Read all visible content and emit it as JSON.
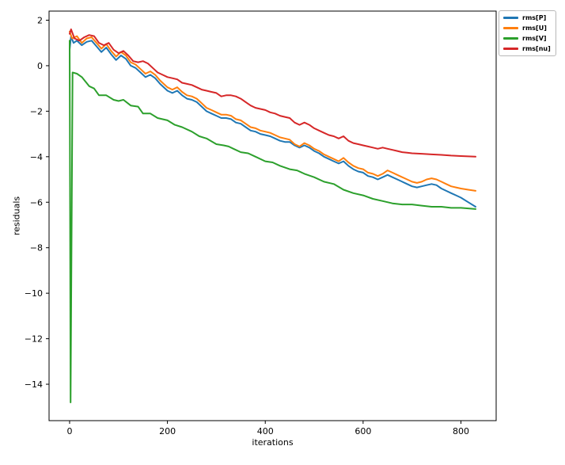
{
  "chart_data": {
    "type": "line",
    "title": "",
    "xlabel": "iterations",
    "ylabel": "residuals",
    "xlim": [
      -42,
      872
    ],
    "ylim": [
      -15.6,
      2.4
    ],
    "xticks": [
      0,
      200,
      400,
      600,
      800
    ],
    "xtick_labels": [
      "0",
      "200",
      "400",
      "600",
      "800"
    ],
    "yticks": [
      2,
      0,
      -2,
      -4,
      -6,
      -8,
      -10,
      -12,
      -14
    ],
    "ytick_labels": [
      "2",
      "0",
      "−2",
      "−4",
      "−6",
      "−8",
      "−10",
      "−12",
      "−14"
    ],
    "grid": false,
    "legend_position": "upper-right-outside",
    "line_width": 2,
    "axis_color": "#000000",
    "series": [
      {
        "name": "rms[P]",
        "color": "#1f77b4",
        "points": [
          [
            0,
            0.7
          ],
          [
            3,
            1.3
          ],
          [
            8,
            1.0
          ],
          [
            15,
            1.1
          ],
          [
            25,
            0.9
          ],
          [
            35,
            1.05
          ],
          [
            45,
            1.1
          ],
          [
            55,
            0.85
          ],
          [
            65,
            0.6
          ],
          [
            75,
            0.8
          ],
          [
            85,
            0.5
          ],
          [
            95,
            0.25
          ],
          [
            105,
            0.45
          ],
          [
            115,
            0.3
          ],
          [
            125,
            0.0
          ],
          [
            135,
            -0.1
          ],
          [
            145,
            -0.3
          ],
          [
            155,
            -0.5
          ],
          [
            165,
            -0.4
          ],
          [
            175,
            -0.55
          ],
          [
            185,
            -0.8
          ],
          [
            200,
            -1.1
          ],
          [
            210,
            -1.2
          ],
          [
            220,
            -1.1
          ],
          [
            230,
            -1.3
          ],
          [
            240,
            -1.45
          ],
          [
            250,
            -1.5
          ],
          [
            260,
            -1.6
          ],
          [
            270,
            -1.8
          ],
          [
            280,
            -2.0
          ],
          [
            290,
            -2.1
          ],
          [
            300,
            -2.2
          ],
          [
            310,
            -2.3
          ],
          [
            320,
            -2.3
          ],
          [
            330,
            -2.35
          ],
          [
            340,
            -2.5
          ],
          [
            350,
            -2.55
          ],
          [
            360,
            -2.7
          ],
          [
            370,
            -2.85
          ],
          [
            380,
            -2.9
          ],
          [
            390,
            -3.0
          ],
          [
            400,
            -3.05
          ],
          [
            410,
            -3.1
          ],
          [
            420,
            -3.2
          ],
          [
            430,
            -3.3
          ],
          [
            440,
            -3.35
          ],
          [
            450,
            -3.35
          ],
          [
            460,
            -3.5
          ],
          [
            470,
            -3.6
          ],
          [
            480,
            -3.5
          ],
          [
            490,
            -3.6
          ],
          [
            500,
            -3.75
          ],
          [
            510,
            -3.85
          ],
          [
            520,
            -4.0
          ],
          [
            530,
            -4.1
          ],
          [
            540,
            -4.2
          ],
          [
            550,
            -4.3
          ],
          [
            560,
            -4.2
          ],
          [
            570,
            -4.4
          ],
          [
            580,
            -4.55
          ],
          [
            590,
            -4.65
          ],
          [
            600,
            -4.7
          ],
          [
            610,
            -4.85
          ],
          [
            620,
            -4.9
          ],
          [
            630,
            -5.0
          ],
          [
            640,
            -4.9
          ],
          [
            650,
            -4.8
          ],
          [
            660,
            -4.9
          ],
          [
            670,
            -5.0
          ],
          [
            680,
            -5.1
          ],
          [
            690,
            -5.2
          ],
          [
            700,
            -5.3
          ],
          [
            710,
            -5.35
          ],
          [
            720,
            -5.3
          ],
          [
            730,
            -5.25
          ],
          [
            740,
            -5.2
          ],
          [
            750,
            -5.25
          ],
          [
            760,
            -5.4
          ],
          [
            770,
            -5.5
          ],
          [
            780,
            -5.6
          ],
          [
            790,
            -5.7
          ],
          [
            800,
            -5.8
          ],
          [
            815,
            -6.0
          ],
          [
            830,
            -6.2
          ]
        ]
      },
      {
        "name": "rms[U]",
        "color": "#ff7f0e",
        "points": [
          [
            0,
            1.5
          ],
          [
            5,
            1.2
          ],
          [
            15,
            1.3
          ],
          [
            25,
            1.0
          ],
          [
            35,
            1.2
          ],
          [
            45,
            1.25
          ],
          [
            55,
            1.0
          ],
          [
            65,
            0.75
          ],
          [
            75,
            0.95
          ],
          [
            85,
            0.65
          ],
          [
            95,
            0.4
          ],
          [
            105,
            0.6
          ],
          [
            115,
            0.45
          ],
          [
            125,
            0.15
          ],
          [
            135,
            0.05
          ],
          [
            145,
            -0.15
          ],
          [
            155,
            -0.35
          ],
          [
            165,
            -0.25
          ],
          [
            175,
            -0.4
          ],
          [
            185,
            -0.65
          ],
          [
            200,
            -0.95
          ],
          [
            210,
            -1.05
          ],
          [
            220,
            -0.95
          ],
          [
            230,
            -1.15
          ],
          [
            240,
            -1.3
          ],
          [
            250,
            -1.35
          ],
          [
            260,
            -1.45
          ],
          [
            270,
            -1.65
          ],
          [
            280,
            -1.85
          ],
          [
            290,
            -1.95
          ],
          [
            300,
            -2.05
          ],
          [
            310,
            -2.15
          ],
          [
            320,
            -2.15
          ],
          [
            330,
            -2.2
          ],
          [
            340,
            -2.35
          ],
          [
            350,
            -2.4
          ],
          [
            360,
            -2.55
          ],
          [
            370,
            -2.7
          ],
          [
            380,
            -2.75
          ],
          [
            390,
            -2.85
          ],
          [
            400,
            -2.9
          ],
          [
            410,
            -2.95
          ],
          [
            420,
            -3.05
          ],
          [
            430,
            -3.15
          ],
          [
            440,
            -3.2
          ],
          [
            450,
            -3.25
          ],
          [
            460,
            -3.45
          ],
          [
            470,
            -3.55
          ],
          [
            480,
            -3.4
          ],
          [
            490,
            -3.5
          ],
          [
            500,
            -3.65
          ],
          [
            510,
            -3.75
          ],
          [
            520,
            -3.9
          ],
          [
            530,
            -4.0
          ],
          [
            540,
            -4.1
          ],
          [
            550,
            -4.2
          ],
          [
            560,
            -4.05
          ],
          [
            570,
            -4.25
          ],
          [
            580,
            -4.4
          ],
          [
            590,
            -4.5
          ],
          [
            600,
            -4.55
          ],
          [
            610,
            -4.7
          ],
          [
            620,
            -4.75
          ],
          [
            630,
            -4.85
          ],
          [
            640,
            -4.75
          ],
          [
            650,
            -4.6
          ],
          [
            660,
            -4.7
          ],
          [
            670,
            -4.8
          ],
          [
            680,
            -4.9
          ],
          [
            690,
            -5.0
          ],
          [
            700,
            -5.1
          ],
          [
            710,
            -5.15
          ],
          [
            720,
            -5.1
          ],
          [
            730,
            -5.0
          ],
          [
            740,
            -4.95
          ],
          [
            750,
            -5.0
          ],
          [
            760,
            -5.1
          ],
          [
            770,
            -5.2
          ],
          [
            780,
            -5.3
          ],
          [
            790,
            -5.35
          ],
          [
            800,
            -5.4
          ],
          [
            815,
            -5.45
          ],
          [
            830,
            -5.5
          ]
        ]
      },
      {
        "name": "rms[V]",
        "color": "#2ca02c",
        "points": [
          [
            0,
            1.1
          ],
          [
            2,
            -14.8
          ],
          [
            6,
            -0.3
          ],
          [
            15,
            -0.35
          ],
          [
            25,
            -0.5
          ],
          [
            40,
            -0.9
          ],
          [
            50,
            -1.0
          ],
          [
            60,
            -1.3
          ],
          [
            75,
            -1.3
          ],
          [
            90,
            -1.5
          ],
          [
            100,
            -1.55
          ],
          [
            110,
            -1.5
          ],
          [
            125,
            -1.75
          ],
          [
            140,
            -1.8
          ],
          [
            150,
            -2.1
          ],
          [
            165,
            -2.1
          ],
          [
            180,
            -2.3
          ],
          [
            200,
            -2.4
          ],
          [
            215,
            -2.6
          ],
          [
            230,
            -2.7
          ],
          [
            250,
            -2.9
          ],
          [
            265,
            -3.1
          ],
          [
            280,
            -3.2
          ],
          [
            300,
            -3.45
          ],
          [
            315,
            -3.5
          ],
          [
            325,
            -3.55
          ],
          [
            335,
            -3.65
          ],
          [
            350,
            -3.8
          ],
          [
            365,
            -3.85
          ],
          [
            380,
            -4.0
          ],
          [
            400,
            -4.2
          ],
          [
            415,
            -4.25
          ],
          [
            430,
            -4.4
          ],
          [
            450,
            -4.55
          ],
          [
            465,
            -4.6
          ],
          [
            480,
            -4.75
          ],
          [
            500,
            -4.9
          ],
          [
            520,
            -5.1
          ],
          [
            540,
            -5.2
          ],
          [
            560,
            -5.45
          ],
          [
            580,
            -5.6
          ],
          [
            600,
            -5.7
          ],
          [
            620,
            -5.85
          ],
          [
            640,
            -5.95
          ],
          [
            660,
            -6.05
          ],
          [
            680,
            -6.1
          ],
          [
            700,
            -6.1
          ],
          [
            720,
            -6.15
          ],
          [
            740,
            -6.2
          ],
          [
            760,
            -6.2
          ],
          [
            780,
            -6.25
          ],
          [
            800,
            -6.25
          ],
          [
            830,
            -6.3
          ]
        ]
      },
      {
        "name": "rms[nu]",
        "color": "#d62728",
        "points": [
          [
            0,
            1.4
          ],
          [
            3,
            1.6
          ],
          [
            10,
            1.2
          ],
          [
            20,
            1.1
          ],
          [
            30,
            1.25
          ],
          [
            40,
            1.35
          ],
          [
            50,
            1.3
          ],
          [
            60,
            1.0
          ],
          [
            70,
            0.9
          ],
          [
            80,
            1.0
          ],
          [
            90,
            0.7
          ],
          [
            100,
            0.55
          ],
          [
            110,
            0.65
          ],
          [
            120,
            0.45
          ],
          [
            130,
            0.2
          ],
          [
            140,
            0.15
          ],
          [
            150,
            0.2
          ],
          [
            160,
            0.1
          ],
          [
            170,
            -0.1
          ],
          [
            180,
            -0.3
          ],
          [
            190,
            -0.4
          ],
          [
            200,
            -0.5
          ],
          [
            210,
            -0.55
          ],
          [
            220,
            -0.6
          ],
          [
            230,
            -0.75
          ],
          [
            240,
            -0.8
          ],
          [
            250,
            -0.85
          ],
          [
            260,
            -0.95
          ],
          [
            270,
            -1.05
          ],
          [
            280,
            -1.1
          ],
          [
            290,
            -1.15
          ],
          [
            300,
            -1.2
          ],
          [
            310,
            -1.35
          ],
          [
            320,
            -1.3
          ],
          [
            330,
            -1.3
          ],
          [
            340,
            -1.35
          ],
          [
            350,
            -1.45
          ],
          [
            360,
            -1.6
          ],
          [
            370,
            -1.75
          ],
          [
            380,
            -1.85
          ],
          [
            390,
            -1.9
          ],
          [
            400,
            -1.95
          ],
          [
            410,
            -2.05
          ],
          [
            420,
            -2.1
          ],
          [
            430,
            -2.2
          ],
          [
            440,
            -2.25
          ],
          [
            450,
            -2.3
          ],
          [
            460,
            -2.5
          ],
          [
            470,
            -2.6
          ],
          [
            480,
            -2.5
          ],
          [
            490,
            -2.6
          ],
          [
            500,
            -2.75
          ],
          [
            510,
            -2.85
          ],
          [
            520,
            -2.95
          ],
          [
            530,
            -3.05
          ],
          [
            540,
            -3.1
          ],
          [
            550,
            -3.2
          ],
          [
            560,
            -3.1
          ],
          [
            570,
            -3.3
          ],
          [
            580,
            -3.4
          ],
          [
            590,
            -3.45
          ],
          [
            600,
            -3.5
          ],
          [
            610,
            -3.55
          ],
          [
            620,
            -3.6
          ],
          [
            630,
            -3.65
          ],
          [
            640,
            -3.6
          ],
          [
            650,
            -3.65
          ],
          [
            660,
            -3.7
          ],
          [
            670,
            -3.75
          ],
          [
            680,
            -3.8
          ],
          [
            690,
            -3.82
          ],
          [
            700,
            -3.85
          ],
          [
            720,
            -3.87
          ],
          [
            740,
            -3.9
          ],
          [
            760,
            -3.92
          ],
          [
            780,
            -3.95
          ],
          [
            800,
            -3.97
          ],
          [
            830,
            -4.0
          ]
        ]
      }
    ]
  }
}
